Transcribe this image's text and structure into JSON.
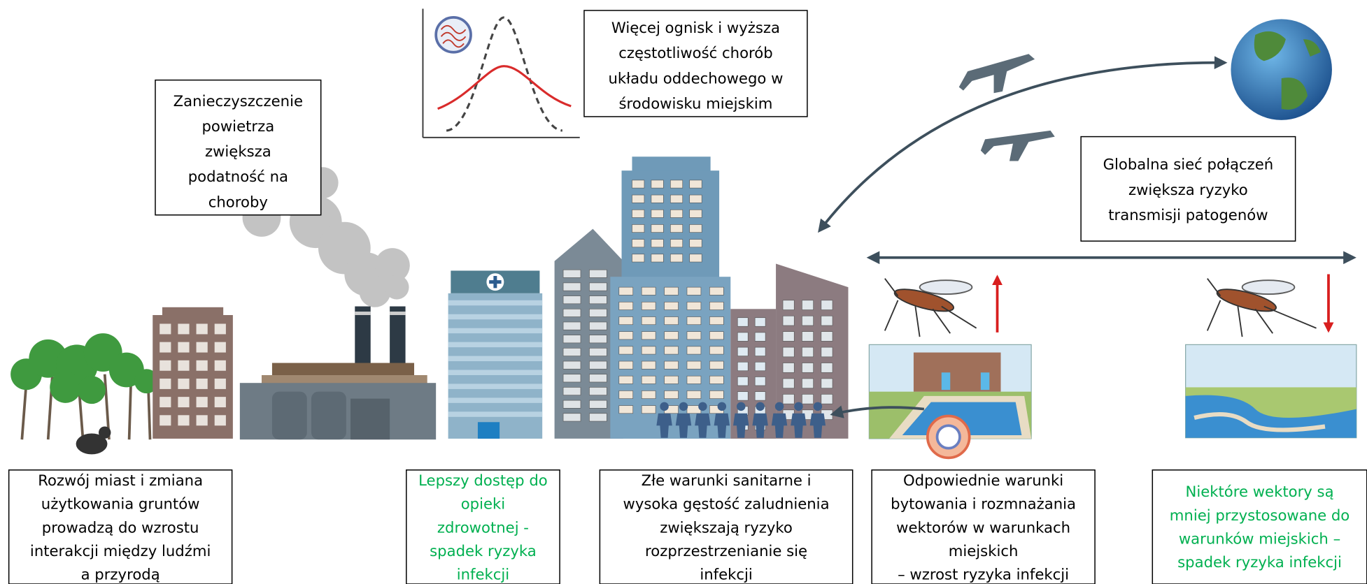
{
  "boxes": [
    {
      "lines": [
        "Zanieczyszczenie",
        "powietrza",
        "zwiększa",
        "podatność na",
        "choroby"
      ],
      "color": "#000000"
    },
    {
      "lines": [
        "Więcej ognisk i wyższa",
        "częstotliwość chorób",
        "układu oddechowego w",
        "środowisku miejskim"
      ],
      "color": "#000000"
    },
    {
      "lines": [
        "Globalna sieć połączeń",
        "zwiększa ryzyko",
        "transmisji patogenów"
      ],
      "color": "#000000"
    },
    {
      "lines": [
        "Rozwój miast i zmiana",
        "użytkowania gruntów",
        "prowadzą do wzrostu",
        "interakcji między ludźmi",
        "a przyrodą"
      ],
      "color": "#000000"
    },
    {
      "lines": [
        "Lepszy dostęp do",
        "opieki",
        "zdrowotnej -",
        "spadek ryzyka",
        "infekcji"
      ],
      "color": "#00b050"
    },
    {
      "lines": [
        "Złe warunki sanitarne i",
        "wysoka gęstość zaludnienia",
        "zwiększają ryzyko",
        "rozprzestrzenianie się",
        "infekcji"
      ],
      "color": "#000000"
    },
    {
      "lines": [
        "Odpowiednie warunki",
        "bytowania i rozmnażania",
        "wektorów w warunkach",
        "miejskich",
        "– wzrost ryzyka infekcji"
      ],
      "color": "#000000"
    },
    {
      "lines": [
        "Niektóre wektory są",
        "mniej przystosowane do",
        "warunków miejskich –",
        "spadek ryzyka infekcji"
      ],
      "color": "#00b050"
    }
  ]
}
